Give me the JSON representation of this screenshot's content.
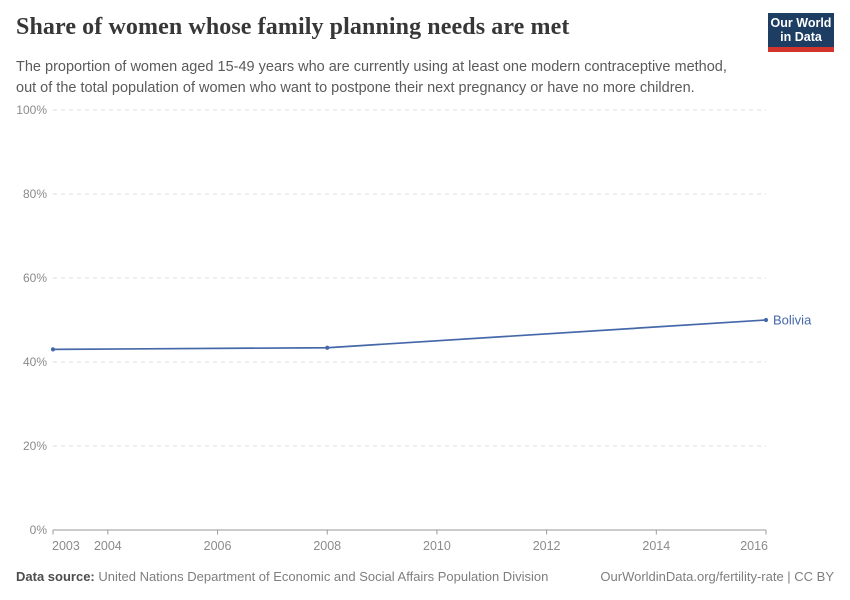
{
  "header": {
    "title": "Share of women whose family planning needs are met",
    "subtitle": "The proportion of women aged 15-49 years who are currently using at least one modern contraceptive method, out of the total population of women who want to postpone their next pregnancy or have no more children.",
    "logo": {
      "line1": "Our World",
      "line2": "in Data",
      "bg_color": "#1d3d63",
      "bar_color": "#d0342c"
    }
  },
  "chart_data": {
    "type": "line",
    "title": "Share of women whose family planning needs are met",
    "xlabel": "",
    "ylabel": "",
    "xlim": [
      2003,
      2016
    ],
    "ylim": [
      0,
      100
    ],
    "grid": "horizontal-dashed",
    "legend_position": "end-of-line label",
    "y_ticks": [
      {
        "value": 0,
        "label": "0%"
      },
      {
        "value": 20,
        "label": "20%"
      },
      {
        "value": 40,
        "label": "40%"
      },
      {
        "value": 60,
        "label": "60%"
      },
      {
        "value": 80,
        "label": "80%"
      },
      {
        "value": 100,
        "label": "100%"
      }
    ],
    "x_ticks": [
      {
        "value": 2003,
        "label": "2003"
      },
      {
        "value": 2004,
        "label": "2004"
      },
      {
        "value": 2006,
        "label": "2006"
      },
      {
        "value": 2008,
        "label": "2008"
      },
      {
        "value": 2010,
        "label": "2010"
      },
      {
        "value": 2012,
        "label": "2012"
      },
      {
        "value": 2014,
        "label": "2014"
      },
      {
        "value": 2016,
        "label": "2016"
      }
    ],
    "series": [
      {
        "name": "Bolivia",
        "color": "#4568a9",
        "points": [
          [
            2003,
            43
          ],
          [
            2008,
            43.4
          ],
          [
            2016,
            50
          ]
        ]
      }
    ]
  },
  "footer": {
    "datasource_label": "Data source:",
    "datasource_text": "United Nations Department of Economic and Social Affairs Population Division",
    "link_text": "OurWorldinData.org/fertility-rate | CC BY"
  },
  "colors": {
    "grid": "#dcdcdc",
    "axis": "#9a9a9a",
    "tick_label": "#8b8b8b",
    "title": "#373737",
    "subtitle": "#5a5a5a",
    "footer": "#7e7e7e"
  }
}
